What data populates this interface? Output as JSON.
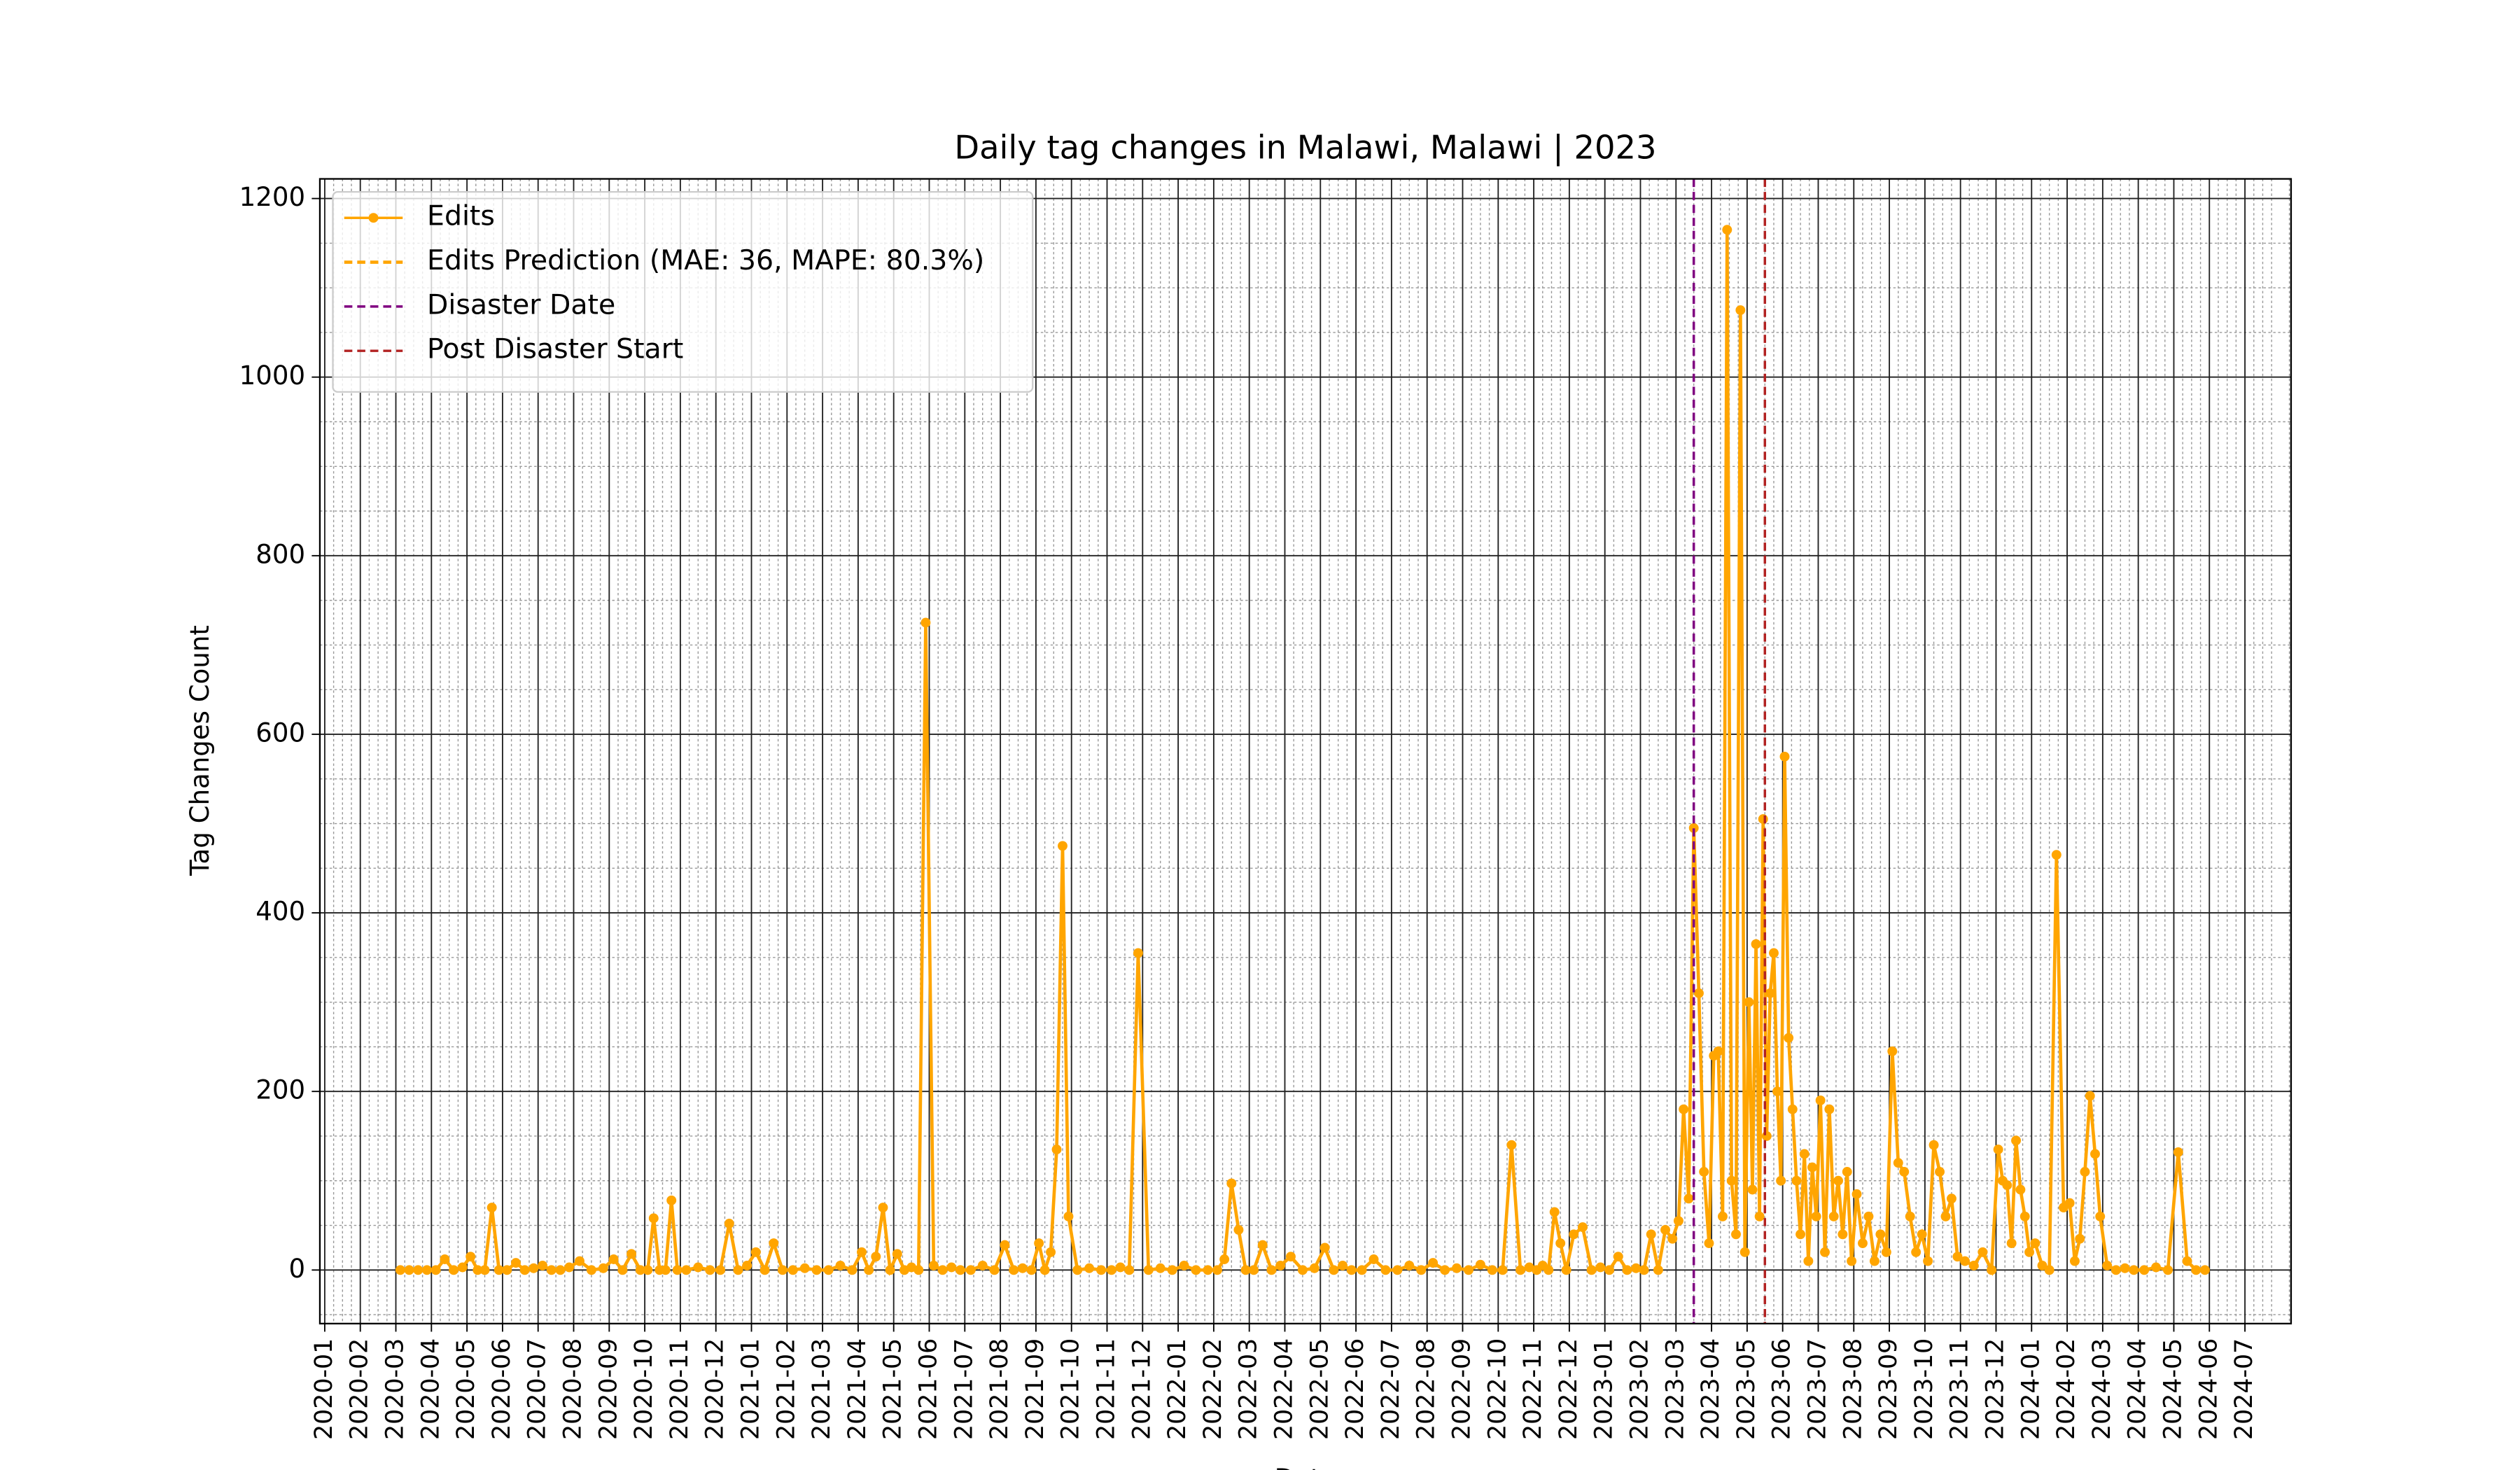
{
  "chart_data": {
    "type": "line",
    "title": "Daily tag changes in Malawi, Malawi | 2023",
    "xlabel": "Date",
    "ylabel": "Tag Changes Count",
    "ylim": [
      -60,
      1222
    ],
    "yticks": [
      0,
      200,
      400,
      600,
      800,
      1000,
      1200
    ],
    "xticks": [
      "2020-01",
      "2020-02",
      "2020-03",
      "2020-04",
      "2020-05",
      "2020-06",
      "2020-07",
      "2020-08",
      "2020-09",
      "2020-10",
      "2020-11",
      "2020-12",
      "2021-01",
      "2021-02",
      "2021-03",
      "2021-04",
      "2021-05",
      "2021-06",
      "2021-07",
      "2021-08",
      "2021-09",
      "2021-10",
      "2021-11",
      "2021-12",
      "2022-01",
      "2022-02",
      "2022-03",
      "2022-04",
      "2022-05",
      "2022-06",
      "2022-07",
      "2022-08",
      "2022-09",
      "2022-10",
      "2022-11",
      "2022-12",
      "2023-01",
      "2023-02",
      "2023-03",
      "2023-04",
      "2023-05",
      "2023-06",
      "2023-07",
      "2023-08",
      "2023-09",
      "2023-10",
      "2023-11",
      "2023-12",
      "2024-01",
      "2024-02",
      "2024-03",
      "2024-04",
      "2024-05",
      "2024-06",
      "2024-07"
    ],
    "grid": true,
    "minor_grid": true,
    "legend": "upper left",
    "x": [
      "2020-03",
      "2020-03",
      "2020-03",
      "2020-03",
      "2020-04",
      "2020-04",
      "2020-04",
      "2020-04",
      "2020-05",
      "2020-05",
      "2020-05",
      "2020-05",
      "2020-05",
      "2020-06",
      "2020-06",
      "2020-06",
      "2020-06",
      "2020-07",
      "2020-07",
      "2020-07",
      "2020-07",
      "2020-08",
      "2020-08",
      "2020-08",
      "2020-09",
      "2020-09",
      "2020-09",
      "2020-09",
      "2020-10",
      "2020-10",
      "2020-10",
      "2020-10",
      "2020-10",
      "2020-10",
      "2020-11",
      "2020-11",
      "2020-11",
      "2020-12",
      "2020-12",
      "2020-12",
      "2020-12",
      "2021-01",
      "2021-01",
      "2021-01",
      "2021-01",
      "2021-02",
      "2021-02",
      "2021-02",
      "2021-03",
      "2021-03",
      "2021-03",
      "2021-04",
      "2021-04",
      "2021-04",
      "2021-04",
      "2021-04",
      "2021-05",
      "2021-05",
      "2021-05",
      "2021-05",
      "2021-05",
      "2021-06",
      "2021-06",
      "2021-06",
      "2021-06",
      "2021-07",
      "2021-07",
      "2021-07",
      "2021-08",
      "2021-08",
      "2021-08",
      "2021-08",
      "2021-09",
      "2021-09",
      "2021-09",
      "2021-09",
      "2021-09",
      "2021-09",
      "2021-10",
      "2021-10",
      "2021-10",
      "2021-11",
      "2021-11",
      "2021-11",
      "2021-11",
      "2021-12",
      "2021-12",
      "2021-12",
      "2022-01",
      "2022-01",
      "2022-01",
      "2022-02",
      "2022-02",
      "2022-02",
      "2022-02",
      "2022-02",
      "2022-03",
      "2022-03",
      "2022-03",
      "2022-03",
      "2022-04",
      "2022-04",
      "2022-04",
      "2022-05",
      "2022-05",
      "2022-05",
      "2022-05",
      "2022-06",
      "2022-06",
      "2022-06",
      "2022-07",
      "2022-07",
      "2022-07",
      "2022-08",
      "2022-08",
      "2022-08",
      "2022-09",
      "2022-09",
      "2022-09",
      "2022-10",
      "2022-10",
      "2022-10",
      "2022-10",
      "2022-11",
      "2022-11",
      "2022-11",
      "2022-11",
      "2022-11",
      "2022-11",
      "2022-12",
      "2022-12",
      "2022-12",
      "2022-12",
      "2023-01",
      "2023-01",
      "2023-01",
      "2023-01",
      "2023-02",
      "2023-02",
      "2023-02",
      "2023-02",
      "2023-02",
      "2023-03",
      "2023-03",
      "2023-03",
      "2023-03",
      "2023-03",
      "2023-03",
      "2023-03",
      "2023-04",
      "2023-04",
      "2023-04",
      "2023-04",
      "2023-04",
      "2023-04",
      "2023-04",
      "2023-04",
      "2023-05",
      "2023-05",
      "2023-05",
      "2023-05",
      "2023-05",
      "2023-05",
      "2023-05",
      "2023-05",
      "2023-05",
      "2023-05",
      "2023-06",
      "2023-06",
      "2023-06",
      "2023-06",
      "2023-06",
      "2023-06",
      "2023-06",
      "2023-06",
      "2023-06",
      "2023-07",
      "2023-07",
      "2023-07",
      "2023-07",
      "2023-07",
      "2023-07",
      "2023-07",
      "2023-07",
      "2023-08",
      "2023-08",
      "2023-08",
      "2023-08",
      "2023-08",
      "2023-08",
      "2023-09",
      "2023-09",
      "2023-09",
      "2023-09",
      "2023-09",
      "2023-09",
      "2023-10",
      "2023-10",
      "2023-10",
      "2023-10",
      "2023-10",
      "2023-10",
      "2023-11",
      "2023-11",
      "2023-11",
      "2023-11",
      "2023-12",
      "2023-12",
      "2023-12",
      "2023-12",
      "2023-12",
      "2023-12",
      "2023-12",
      "2023-12",
      "2024-01",
      "2024-01",
      "2024-01",
      "2024-01",
      "2024-01",
      "2024-02",
      "2024-02",
      "2024-02",
      "2024-02",
      "2024-02",
      "2024-02",
      "2024-02",
      "2024-03",
      "2024-03",
      "2024-03",
      "2024-03",
      "2024-04",
      "2024-04",
      "2024-04",
      "2024-05",
      "2024-05",
      "2024-05",
      "2024-05"
    ],
    "series": [
      {
        "name": "Edits",
        "color": "orange",
        "marker": "o",
        "values": [
          0,
          0,
          0,
          0,
          0,
          12,
          0,
          3,
          15,
          0,
          0,
          70,
          0,
          0,
          8,
          0,
          2,
          5,
          0,
          0,
          3,
          10,
          0,
          2,
          12,
          0,
          18,
          0,
          0,
          58,
          0,
          0,
          78,
          0,
          0,
          3,
          0,
          0,
          52,
          0,
          5,
          20,
          0,
          30,
          0,
          0,
          2,
          0,
          0,
          5,
          0,
          20,
          0,
          15,
          70,
          0,
          18,
          0,
          3,
          0,
          725,
          5,
          0,
          3,
          0,
          0,
          5,
          0,
          28,
          0,
          2,
          0,
          30,
          0,
          20,
          135,
          475,
          60,
          0,
          2,
          0,
          0,
          3,
          0,
          355,
          0,
          2,
          0,
          5,
          0,
          0,
          0,
          12,
          97,
          45,
          0,
          0,
          28,
          0,
          5,
          15,
          0,
          2,
          25,
          0,
          5,
          0,
          0,
          12,
          0,
          0,
          5,
          0,
          8,
          0,
          2,
          0,
          6,
          0,
          0,
          140,
          0,
          3,
          0,
          5,
          0,
          65,
          30,
          0,
          40,
          48,
          0,
          3,
          0,
          15,
          0,
          2,
          0,
          40,
          0,
          45,
          35,
          55,
          180,
          80,
          495,
          310,
          110,
          30,
          240,
          245,
          60,
          1165,
          100,
          40,
          1075,
          20,
          300,
          90,
          365,
          60,
          505,
          150,
          310,
          355,
          200,
          100,
          575,
          260,
          180,
          100,
          40,
          130,
          10,
          115,
          60,
          190,
          20,
          180,
          60,
          100,
          40,
          110,
          10,
          85,
          30,
          60,
          10,
          40,
          20,
          245,
          120,
          110,
          60,
          20,
          40,
          10,
          140,
          110,
          60,
          80,
          15,
          10,
          5,
          20,
          0,
          135,
          100,
          95,
          30,
          145,
          90,
          60,
          20,
          30,
          5,
          0,
          465,
          70,
          75,
          10,
          35,
          110,
          195,
          130,
          60,
          5,
          0,
          2,
          0,
          0,
          3,
          0,
          132,
          10,
          0,
          0
        ]
      },
      {
        "name": "Edits Prediction (MAE: 36, MAPE: 80.3%)",
        "color": "orange",
        "linestyle": "dashed"
      }
    ],
    "vlines": [
      {
        "name": "Disaster Date",
        "x": "2023-03",
        "color": "purple"
      },
      {
        "name": "Post Disaster Start",
        "x": "2023-05",
        "color": "#b22222"
      }
    ]
  }
}
